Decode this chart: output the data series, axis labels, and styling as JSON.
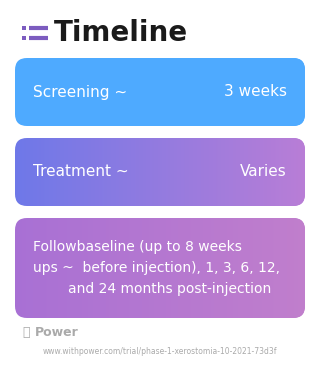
{
  "title": "Timeline",
  "title_fontsize": 20,
  "title_color": "#1a1a1a",
  "bg_color": "#ffffff",
  "icon_color": "#7c5cbf",
  "boxes": [
    {
      "label_left": "Screening ~",
      "label_right": "3 weeks",
      "color_left": "#4eaaff",
      "color_right": "#4eaaff",
      "text_color": "#ffffff",
      "fontsize": 11,
      "multiline": false,
      "text": null
    },
    {
      "label_left": "Treatment ~",
      "label_right": "Varies",
      "color_left": "#6e78e8",
      "color_right": "#b87dd6",
      "text_color": "#ffffff",
      "fontsize": 11,
      "multiline": false,
      "text": null
    },
    {
      "label_left": null,
      "label_right": null,
      "color_left": "#a870d4",
      "color_right": "#c07ecc",
      "text_color": "#ffffff",
      "fontsize": 10,
      "multiline": true,
      "text": "Followbaseline (up to 8 weeks\nups ~  before injection), 1, 3, 6, 12,\n        and 24 months post-injection"
    }
  ],
  "footer_logo_text": "Power",
  "footer_url": "www.withpower.com/trial/phase-1-xerostomia-10-2021-73d3f",
  "footer_color": "#aaaaaa",
  "footer_fontsize": 5.5
}
